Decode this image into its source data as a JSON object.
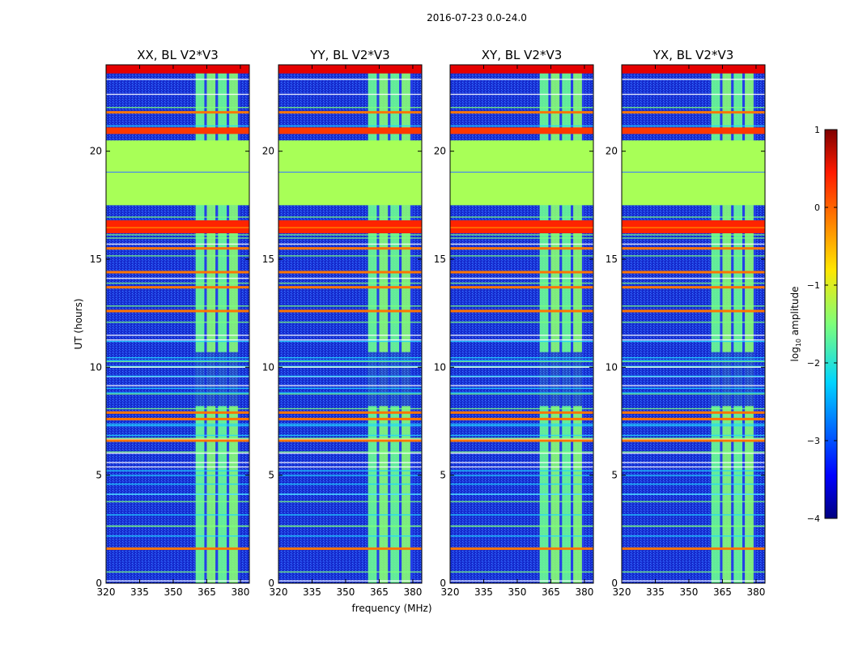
{
  "figure_title": "2016-07-23 0.0-24.0",
  "chart_data": {
    "type": "heatmap",
    "suptitle": "2016-07-23 0.0-24.0",
    "xlabel": "frequency (MHz)",
    "ylabel": "UT (hours)",
    "x_ticks": [
      "320",
      "335",
      "350",
      "365",
      "380"
    ],
    "x_tick_values": [
      320,
      335,
      350,
      365,
      380
    ],
    "xlim": [
      320,
      384
    ],
    "y_ticks": [
      "0",
      "5",
      "10",
      "15",
      "20"
    ],
    "y_tick_values": [
      0,
      5,
      10,
      15,
      20
    ],
    "ylim": [
      0,
      24
    ],
    "panels": [
      {
        "title": "XX, BL V2*V3",
        "rfi_band": [
          360,
          380
        ]
      },
      {
        "title": "YY, BL V2*V3",
        "rfi_band": [
          360,
          380
        ]
      },
      {
        "title": "XY, BL V2*V3",
        "rfi_band": [
          360,
          380
        ]
      },
      {
        "title": "YX, BL V2*V3",
        "rfi_band": [
          360,
          380
        ]
      }
    ],
    "colorbar": {
      "label": "log10 amplitude",
      "label_main": "log",
      "label_sub": "10",
      "label_rest": " amplitude",
      "range": [
        -4,
        1
      ],
      "tick_values": [
        1,
        0,
        -1,
        -2,
        -3,
        -4
      ],
      "tick_labels": [
        "1",
        "0",
        "−1",
        "−2",
        "−3",
        "−4"
      ],
      "colormap": "jet"
    },
    "masked_intervals_hours": [
      {
        "from": 17.5,
        "to": 20.5,
        "level": -1.3
      },
      {
        "from": 20.8,
        "to": 21.1,
        "level": 0.1
      },
      {
        "from": 16.2,
        "to": 16.8,
        "level": 0.2
      },
      {
        "from": 23.6,
        "to": 24.0,
        "level": 0.5
      }
    ]
  },
  "colors": {
    "background": "#ffffff",
    "axis": "#000000",
    "baseline_blue": "#1a2fd6",
    "flag_green": "#9cff5a"
  }
}
